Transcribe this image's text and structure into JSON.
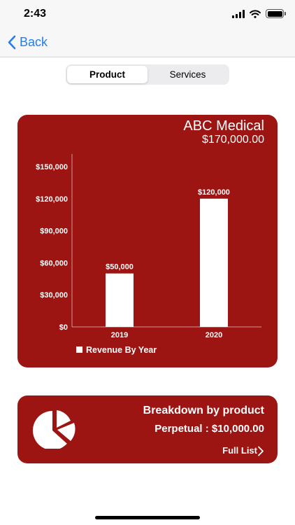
{
  "status_bar": {
    "time": "2:43"
  },
  "nav": {
    "back_label": "Back"
  },
  "segments": {
    "product": "Product",
    "services": "Services"
  },
  "company": {
    "name": "ABC Medical",
    "total": "$170,000.00"
  },
  "chart_data": {
    "type": "bar",
    "categories": [
      "2019",
      "2020"
    ],
    "values": [
      50000,
      120000
    ],
    "value_labels": [
      "$50,000",
      "$120,000"
    ],
    "y_ticks": [
      0,
      30000,
      60000,
      90000,
      120000,
      150000
    ],
    "y_tick_labels": [
      "$0",
      "$30,000",
      "$60,000",
      "$90,000",
      "$120,000",
      "$150,000"
    ],
    "ylim": [
      0,
      150000
    ],
    "legend": "Revenue By Year",
    "legend_placement": "bottom-left",
    "grid": false,
    "bar_color": "#ffffff",
    "background_color": "#9c1513"
  },
  "breakdown": {
    "title": "Breakdown by product",
    "value": "Perpetual : $10,000.00",
    "link": "Full List"
  },
  "colors": {
    "accent": "#1f7ff4",
    "card": "#9c1513"
  },
  "icons": {
    "back": "chevron-left-icon",
    "pie": "pie-chart-icon",
    "link": "chevron-right-icon"
  }
}
